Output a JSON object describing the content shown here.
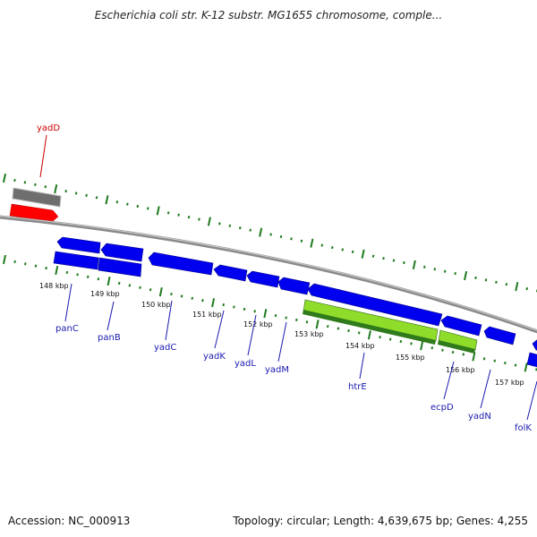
{
  "title": "Escherichia coli str. K-12 substr. MG1655 chromosome, comple...",
  "footer": {
    "accession": "Accession: NC_000913",
    "topology": "Topology: circular; Length: 4,639,675 bp; Genes: 4,255"
  },
  "colors": {
    "forward_gene": "#ff0000",
    "forward_gene_track": "#707070",
    "reverse_gene": "#0000ee",
    "rna_gene": "#8fdc2a",
    "tick": "#1e7a1e",
    "backbone": "#8a8a8a",
    "label": "#1a1ab0",
    "label_forward": "#cc0000"
  },
  "kbp_labels": [
    "148 kbp",
    "149 kbp",
    "150 kbp",
    "151 kbp",
    "152 kbp",
    "153 kbp",
    "154 kbp",
    "155 kbp",
    "156 kbp",
    "157 kbp"
  ],
  "genes_forward": [
    {
      "name": "yadD"
    }
  ],
  "genes_reverse": [
    {
      "name": "panC"
    },
    {
      "name": "panB"
    },
    {
      "name": "yadC"
    },
    {
      "name": "yadK"
    },
    {
      "name": "yadL"
    },
    {
      "name": "yadM"
    },
    {
      "name": "htrE"
    },
    {
      "name": "ecpD"
    },
    {
      "name": "yadN"
    },
    {
      "name": "folK"
    }
  ]
}
